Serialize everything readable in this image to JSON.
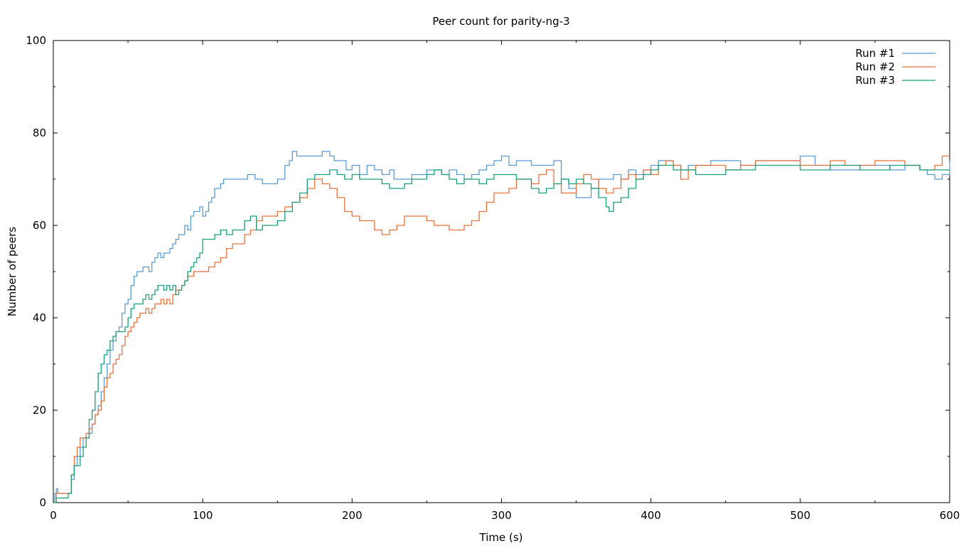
{
  "chart_data": {
    "type": "line",
    "title": "Peer count for parity-ng-3",
    "xlabel": "Time (s)",
    "ylabel": "Number of peers",
    "xlim": [
      0,
      600
    ],
    "ylim": [
      0,
      100
    ],
    "xticks": [
      0,
      100,
      200,
      300,
      400,
      500,
      600
    ],
    "yticks": [
      0,
      20,
      40,
      60,
      80,
      100
    ],
    "grid": false,
    "legend_position": "top-right",
    "series": [
      {
        "name": "Run #1",
        "color": "#5b9bd5",
        "x": [
          0,
          1,
          2,
          3,
          5,
          8,
          10,
          12,
          14,
          16,
          18,
          20,
          22,
          24,
          26,
          28,
          30,
          32,
          34,
          36,
          38,
          40,
          42,
          44,
          46,
          48,
          50,
          52,
          54,
          56,
          58,
          60,
          62,
          64,
          66,
          68,
          70,
          72,
          74,
          76,
          78,
          80,
          82,
          84,
          86,
          88,
          90,
          92,
          94,
          96,
          98,
          100,
          102,
          104,
          106,
          108,
          110,
          112,
          114,
          116,
          118,
          120,
          125,
          130,
          135,
          140,
          145,
          150,
          155,
          158,
          160,
          163,
          166,
          170,
          175,
          180,
          185,
          188,
          192,
          196,
          200,
          205,
          210,
          215,
          220,
          225,
          228,
          230,
          235,
          240,
          245,
          250,
          255,
          260,
          265,
          270,
          275,
          280,
          285,
          290,
          295,
          300,
          305,
          310,
          315,
          320,
          325,
          330,
          335,
          340,
          345,
          350,
          355,
          360,
          365,
          370,
          375,
          380,
          385,
          390,
          395,
          400,
          405,
          410,
          415,
          420,
          425,
          430,
          440,
          450,
          460,
          470,
          480,
          490,
          500,
          510,
          520,
          530,
          540,
          550,
          560,
          570,
          580,
          585,
          590,
          595,
          600
        ],
        "values": [
          0,
          2,
          3,
          2,
          2,
          2,
          2,
          5,
          8,
          10,
          12,
          14,
          14,
          15,
          17,
          19,
          21,
          24,
          27,
          30,
          33,
          35,
          37,
          38,
          41,
          43,
          44,
          47,
          49,
          50,
          50,
          51,
          51,
          50,
          52,
          53,
          54,
          53,
          54,
          54,
          55,
          56,
          57,
          58,
          58,
          60,
          59,
          62,
          63,
          63,
          64,
          62,
          63,
          65,
          66,
          68,
          68,
          69,
          70,
          70,
          70,
          70,
          70,
          71,
          70,
          69,
          69,
          70,
          73,
          74,
          76,
          75,
          75,
          75,
          75,
          76,
          75,
          74,
          74,
          72,
          73,
          71,
          73,
          72,
          71,
          72,
          70,
          70,
          70,
          71,
          71,
          72,
          72,
          71,
          72,
          71,
          70,
          71,
          72,
          73,
          74,
          75,
          73,
          74,
          74,
          73,
          73,
          73,
          74,
          70,
          68,
          66,
          66,
          68,
          70,
          70,
          71,
          70,
          72,
          71,
          72,
          73,
          74,
          74,
          73,
          72,
          73,
          73,
          74,
          74,
          73,
          74,
          74,
          74,
          75,
          73,
          72,
          72,
          73,
          73,
          72,
          73,
          72,
          71,
          70,
          71,
          74
        ]
      },
      {
        "name": "Run #2",
        "color": "#e8723a",
        "x": [
          0,
          2,
          4,
          6,
          8,
          10,
          12,
          14,
          16,
          18,
          20,
          22,
          24,
          26,
          28,
          30,
          32,
          34,
          36,
          38,
          40,
          42,
          44,
          46,
          48,
          50,
          52,
          54,
          56,
          58,
          60,
          62,
          64,
          66,
          68,
          70,
          72,
          74,
          76,
          78,
          80,
          82,
          84,
          86,
          88,
          90,
          92,
          94,
          96,
          98,
          100,
          104,
          108,
          112,
          116,
          120,
          124,
          128,
          132,
          136,
          140,
          145,
          150,
          155,
          160,
          165,
          170,
          175,
          180,
          185,
          190,
          195,
          200,
          205,
          210,
          215,
          220,
          225,
          230,
          235,
          240,
          245,
          250,
          255,
          260,
          265,
          270,
          275,
          280,
          285,
          290,
          295,
          300,
          305,
          310,
          315,
          320,
          325,
          330,
          335,
          340,
          345,
          350,
          355,
          360,
          365,
          370,
          375,
          380,
          385,
          390,
          395,
          400,
          405,
          410,
          415,
          420,
          425,
          430,
          440,
          450,
          460,
          470,
          480,
          490,
          500,
          510,
          520,
          530,
          540,
          550,
          560,
          570,
          580,
          590,
          595,
          600
        ],
        "values": [
          0,
          2,
          2,
          2,
          2,
          2,
          6,
          10,
          12,
          14,
          14,
          15,
          16,
          17,
          19,
          20,
          22,
          25,
          27,
          28,
          30,
          31,
          32,
          34,
          36,
          37,
          38,
          39,
          40,
          41,
          41,
          42,
          41,
          42,
          43,
          43,
          44,
          43,
          44,
          43,
          45,
          46,
          46,
          47,
          48,
          49,
          49,
          50,
          50,
          50,
          50,
          51,
          52,
          53,
          55,
          56,
          56,
          58,
          59,
          61,
          62,
          62,
          63,
          64,
          65,
          66,
          68,
          70,
          69,
          68,
          66,
          63,
          62,
          61,
          61,
          59,
          58,
          59,
          60,
          62,
          62,
          62,
          61,
          60,
          60,
          59,
          59,
          60,
          61,
          63,
          65,
          67,
          67,
          68,
          70,
          70,
          69,
          71,
          72,
          69,
          67,
          67,
          69,
          71,
          70,
          68,
          67,
          68,
          70,
          71,
          70,
          72,
          71,
          73,
          74,
          73,
          70,
          72,
          73,
          73,
          72,
          73,
          74,
          74,
          74,
          73,
          73,
          74,
          73,
          73,
          74,
          74,
          73,
          72,
          73,
          75,
          75
        ]
      },
      {
        "name": "Run #3",
        "color": "#17a07a",
        "x": [
          0,
          2,
          4,
          6,
          8,
          10,
          12,
          14,
          16,
          18,
          20,
          22,
          24,
          26,
          28,
          30,
          32,
          34,
          36,
          38,
          40,
          42,
          44,
          46,
          48,
          50,
          52,
          54,
          56,
          58,
          60,
          62,
          64,
          66,
          68,
          70,
          72,
          74,
          76,
          78,
          80,
          82,
          84,
          86,
          88,
          90,
          92,
          94,
          96,
          98,
          100,
          104,
          108,
          112,
          116,
          120,
          124,
          128,
          132,
          136,
          140,
          145,
          150,
          155,
          160,
          165,
          170,
          175,
          180,
          185,
          190,
          195,
          200,
          205,
          210,
          215,
          220,
          225,
          230,
          235,
          240,
          245,
          250,
          255,
          260,
          265,
          270,
          275,
          280,
          285,
          290,
          295,
          300,
          305,
          310,
          315,
          320,
          325,
          330,
          335,
          340,
          345,
          350,
          355,
          360,
          365,
          370,
          372,
          375,
          380,
          385,
          390,
          395,
          400,
          405,
          410,
          415,
          420,
          425,
          430,
          440,
          450,
          460,
          470,
          480,
          490,
          500,
          510,
          520,
          530,
          540,
          550,
          560,
          570,
          580,
          590,
          595,
          600
        ],
        "values": [
          0,
          1,
          1,
          1,
          1,
          2,
          6,
          8,
          8,
          10,
          12,
          14,
          18,
          20,
          24,
          28,
          30,
          32,
          33,
          35,
          36,
          37,
          37,
          37,
          38,
          40,
          42,
          43,
          43,
          43,
          44,
          45,
          44,
          45,
          46,
          47,
          47,
          46,
          47,
          46,
          47,
          45,
          46,
          47,
          48,
          50,
          51,
          52,
          53,
          54,
          57,
          57,
          58,
          59,
          58,
          59,
          59,
          61,
          62,
          59,
          60,
          60,
          61,
          63,
          65,
          67,
          70,
          71,
          71,
          72,
          71,
          70,
          71,
          70,
          70,
          70,
          69,
          68,
          68,
          69,
          70,
          70,
          71,
          72,
          71,
          70,
          69,
          70,
          70,
          69,
          70,
          71,
          71,
          71,
          70,
          70,
          68,
          67,
          68,
          69,
          70,
          69,
          70,
          69,
          68,
          66,
          64,
          63,
          65,
          66,
          68,
          70,
          71,
          72,
          73,
          73,
          72,
          72,
          72,
          71,
          71,
          72,
          72,
          73,
          73,
          73,
          72,
          72,
          73,
          73,
          72,
          72,
          73,
          73,
          72,
          72,
          72,
          72
        ]
      }
    ]
  }
}
